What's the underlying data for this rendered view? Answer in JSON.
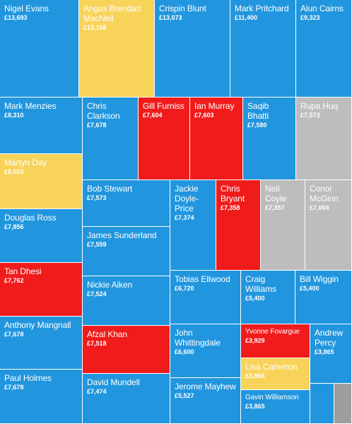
{
  "colors": {
    "blue": "#2196de",
    "yellow": "#f8d35a",
    "red": "#f01c1c",
    "grey": "#bdbdbd",
    "dark-grey": "#9e9e9e"
  },
  "chart_data": {
    "type": "treemap",
    "title": "",
    "tiles": [
      {
        "name": "Nigel Evans",
        "label": "£13,693",
        "value": 13693,
        "color": "blue"
      },
      {
        "name": "Angus Brendan MacNeil",
        "label": "£13,168",
        "value": 13168,
        "color": "yellow"
      },
      {
        "name": "Crispin Blunt",
        "label": "£13,073",
        "value": 13073,
        "color": "blue"
      },
      {
        "name": "Mark Pritchard",
        "label": "£11,400",
        "value": 11400,
        "color": "blue"
      },
      {
        "name": "Alun Cairns",
        "label": "£9,323",
        "value": 9323,
        "color": "blue"
      },
      {
        "name": "Mark Menzies",
        "label": "£8,310",
        "value": 8310,
        "color": "blue"
      },
      {
        "name": "Chris Clarkson",
        "label": "£7,678",
        "value": 7678,
        "color": "blue"
      },
      {
        "name": "Gill Furniss",
        "label": "£7,604",
        "value": 7604,
        "color": "red"
      },
      {
        "name": "Ian Murray",
        "label": "£7,603",
        "value": 7603,
        "color": "red"
      },
      {
        "name": "Saqib Bhatti",
        "label": "£7,580",
        "value": 7580,
        "color": "blue"
      },
      {
        "name": "Rupa Huq",
        "label": "£7,573",
        "value": 7573,
        "color": "grey"
      },
      {
        "name": "Martyn Day",
        "label": "£8,023",
        "value": 8023,
        "color": "yellow"
      },
      {
        "name": "Bob Stewart",
        "label": "£7,573",
        "value": 7573,
        "color": "blue"
      },
      {
        "name": "Jackie Doyle-Price",
        "label": "£7,374",
        "value": 7374,
        "color": "blue"
      },
      {
        "name": "Chris Bryant",
        "label": "£7,358",
        "value": 7358,
        "color": "red"
      },
      {
        "name": "Neil Coyle",
        "label": "£7,357",
        "value": 7357,
        "color": "grey"
      },
      {
        "name": "Conor McGinn",
        "label": "£7,004",
        "value": 7004,
        "color": "grey"
      },
      {
        "name": "Douglas Ross",
        "label": "£7,856",
        "value": 7856,
        "color": "blue"
      },
      {
        "name": "James Sunderland",
        "label": "£7,559",
        "value": 7559,
        "color": "blue"
      },
      {
        "name": "Tan Dhesi",
        "label": "£7,762",
        "value": 7762,
        "color": "red"
      },
      {
        "name": "Nickie Aiken",
        "label": "£7,524",
        "value": 7524,
        "color": "blue"
      },
      {
        "name": "Tobias Ellwood",
        "label": "£6,720",
        "value": 6720,
        "color": "blue"
      },
      {
        "name": "Craig Williams",
        "label": "£5,400",
        "value": 5400,
        "color": "blue"
      },
      {
        "name": "Bill Wiggin",
        "label": "£5,400",
        "value": 5400,
        "color": "blue"
      },
      {
        "name": "Anthony Mangnall",
        "label": "£7,678",
        "value": 7678,
        "color": "blue"
      },
      {
        "name": "Afzal Khan",
        "label": "£7,518",
        "value": 7518,
        "color": "red"
      },
      {
        "name": "John Whittingdale",
        "label": "£6,600",
        "value": 6600,
        "color": "blue"
      },
      {
        "name": "Yvonne Fovargue",
        "label": "£3,929",
        "value": 3929,
        "color": "red"
      },
      {
        "name": "Andrew Percy",
        "label": "£3,865",
        "value": 3865,
        "color": "blue"
      },
      {
        "name": "Lisa Cameron",
        "label": "£3,865",
        "value": 3865,
        "color": "yellow"
      },
      {
        "name": "Paul Holmes",
        "label": "£7,678",
        "value": 7678,
        "color": "blue"
      },
      {
        "name": "David Mundell",
        "label": "£7,474",
        "value": 7474,
        "color": "blue"
      },
      {
        "name": "Jerome Mayhew",
        "label": "£5,527",
        "value": 5527,
        "color": "blue"
      },
      {
        "name": "Gavin Williamson",
        "label": "£3,865",
        "value": 3865,
        "color": "blue"
      },
      {
        "name": "",
        "label": "",
        "value": null,
        "color": "blue"
      },
      {
        "name": "",
        "label": "",
        "value": null,
        "color": "dark-grey"
      }
    ]
  }
}
